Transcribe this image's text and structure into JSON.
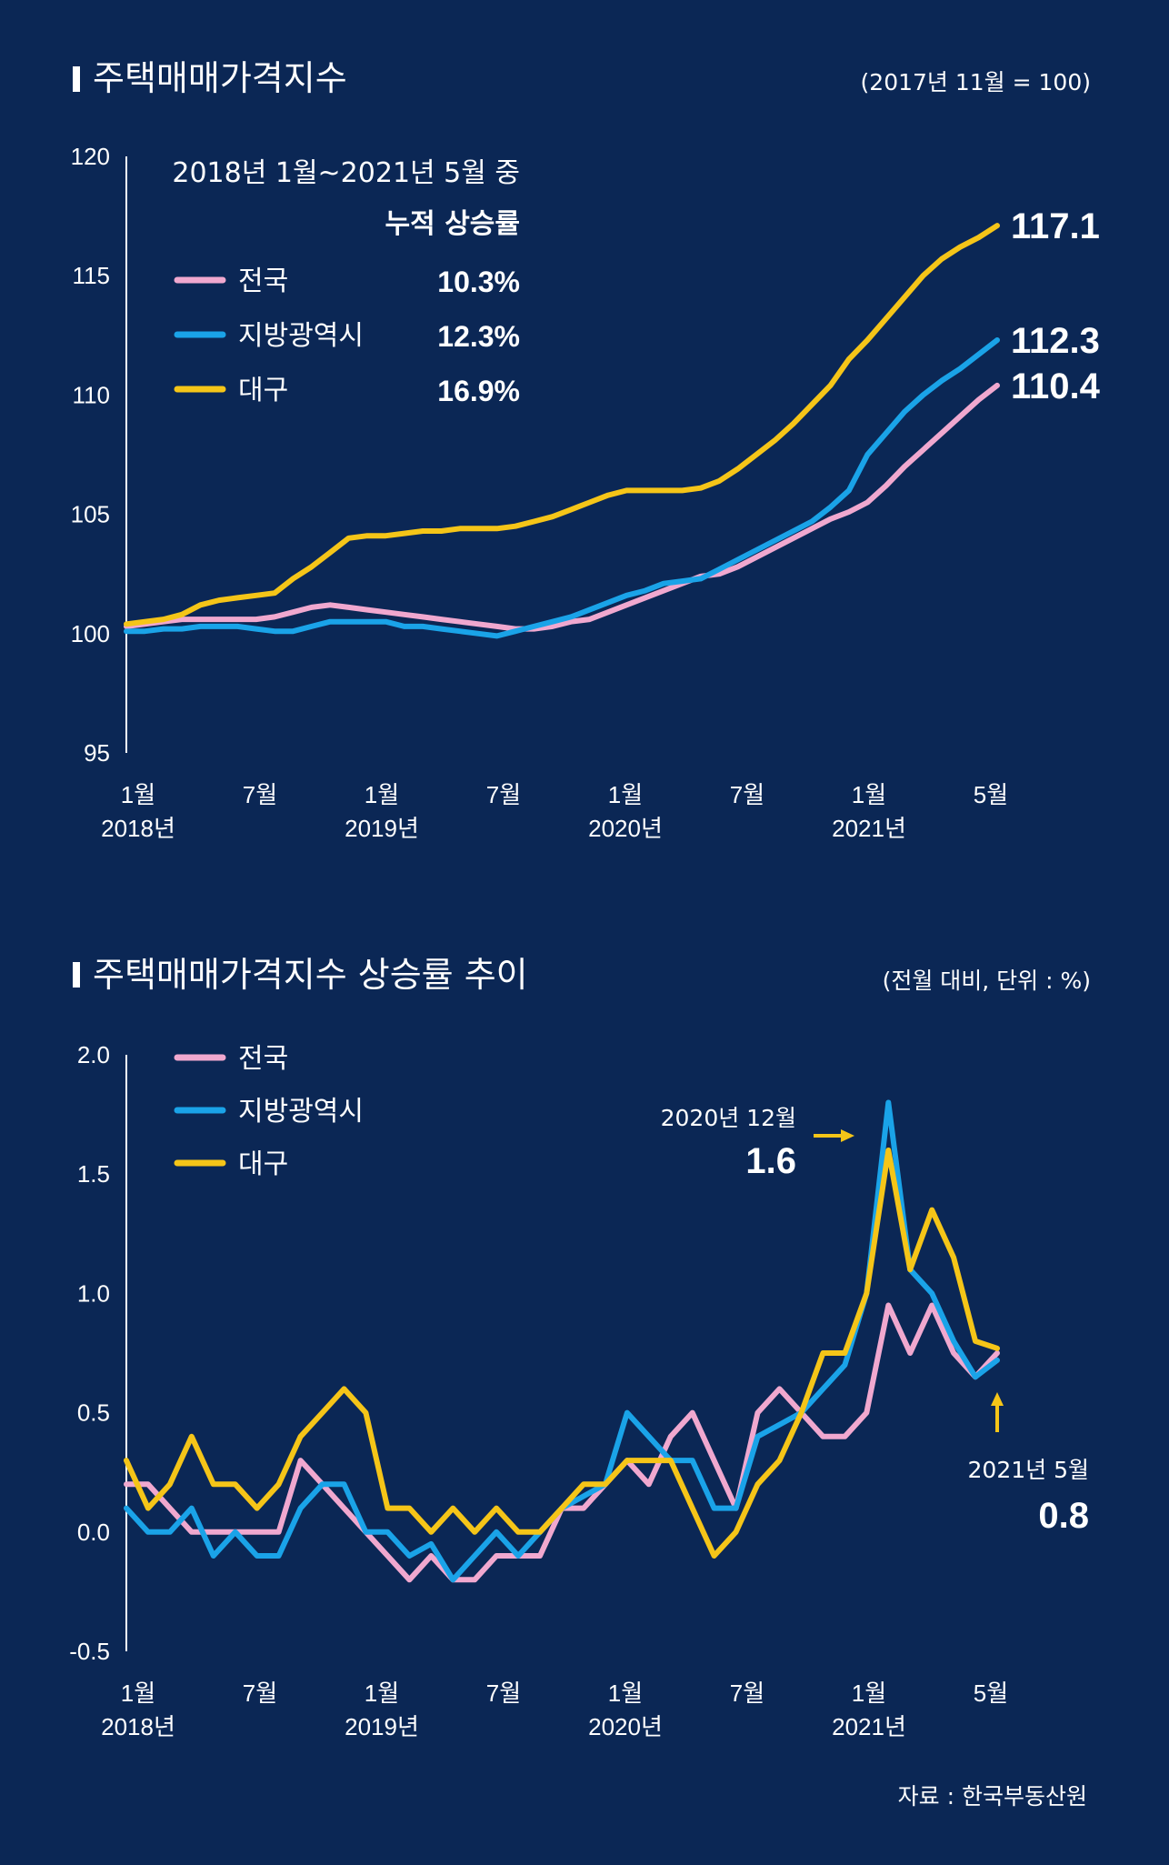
{
  "chart_data": [
    {
      "type": "line",
      "title": "주택매매가격지수",
      "subtitle": "(2017년 11월 = 100)",
      "xlabel": "",
      "ylabel": "",
      "ylim": [
        95,
        120
      ],
      "yticks": [
        "120",
        "115",
        "110",
        "105",
        "100",
        "95"
      ],
      "x_tick_labels": [
        {
          "month": "1월",
          "year": "2018년"
        },
        {
          "month": "7월",
          "year": ""
        },
        {
          "month": "1월",
          "year": "2019년"
        },
        {
          "month": "7월",
          "year": ""
        },
        {
          "month": "1월",
          "year": "2020년"
        },
        {
          "month": "7월",
          "year": ""
        },
        {
          "month": "1월",
          "year": "2021년"
        },
        {
          "month": "5월",
          "year": ""
        }
      ],
      "legend_header": {
        "period": "2018년 1월~2021년 5월 중",
        "label": "누적 상승률"
      },
      "series": [
        {
          "name": "전국",
          "color": "#f0a8cf",
          "cumulative": "10.3%",
          "end_label": "110.4",
          "values": [
            100.3,
            100.4,
            100.5,
            100.6,
            100.6,
            100.6,
            100.6,
            100.6,
            100.7,
            100.9,
            101.1,
            101.2,
            101.1,
            101.0,
            100.9,
            100.8,
            100.7,
            100.6,
            100.5,
            100.4,
            100.3,
            100.2,
            100.2,
            100.3,
            100.5,
            100.6,
            100.9,
            101.2,
            101.5,
            101.8,
            102.1,
            102.4,
            102.5,
            102.8,
            103.2,
            103.6,
            104.0,
            104.4,
            104.8,
            105.1,
            105.5,
            106.2,
            107.0,
            107.7,
            108.4,
            109.1,
            109.8,
            110.4
          ]
        },
        {
          "name": "지방광역시",
          "color": "#1aa3e8",
          "cumulative": "12.3%",
          "end_label": "112.3",
          "values": [
            100.1,
            100.1,
            100.2,
            100.2,
            100.3,
            100.3,
            100.3,
            100.2,
            100.1,
            100.1,
            100.3,
            100.5,
            100.5,
            100.5,
            100.5,
            100.3,
            100.3,
            100.2,
            100.1,
            100.0,
            99.9,
            100.1,
            100.3,
            100.5,
            100.7,
            101.0,
            101.3,
            101.6,
            101.8,
            102.1,
            102.2,
            102.3,
            102.7,
            103.1,
            103.5,
            103.9,
            104.3,
            104.7,
            105.3,
            106.0,
            107.5,
            108.4,
            109.3,
            110.0,
            110.6,
            111.1,
            111.7,
            112.3
          ]
        },
        {
          "name": "대구",
          "color": "#f5c518",
          "cumulative": "16.9%",
          "end_label": "117.1",
          "values": [
            100.4,
            100.5,
            100.6,
            100.8,
            101.2,
            101.4,
            101.5,
            101.6,
            101.7,
            102.3,
            102.8,
            103.4,
            104.0,
            104.1,
            104.1,
            104.2,
            104.3,
            104.3,
            104.4,
            104.4,
            104.4,
            104.5,
            104.7,
            104.9,
            105.2,
            105.5,
            105.8,
            106.0,
            106.0,
            106.0,
            106.0,
            106.1,
            106.4,
            106.9,
            107.5,
            108.1,
            108.8,
            109.6,
            110.4,
            111.5,
            112.3,
            113.2,
            114.1,
            115.0,
            115.7,
            116.2,
            116.6,
            117.1
          ]
        }
      ]
    },
    {
      "type": "line",
      "title": "주택매매가격지수 상승률 추이",
      "subtitle": "(전월 대비, 단위 : %)",
      "xlabel": "",
      "ylabel": "",
      "ylim": [
        -0.5,
        2.0
      ],
      "yticks": [
        "2.0",
        "1.5",
        "1.0",
        "0.5",
        "0.0",
        "-0.5"
      ],
      "x_tick_labels": [
        {
          "month": "1월",
          "year": "2018년"
        },
        {
          "month": "7월",
          "year": ""
        },
        {
          "month": "1월",
          "year": "2019년"
        },
        {
          "month": "7월",
          "year": ""
        },
        {
          "month": "1월",
          "year": "2020년"
        },
        {
          "month": "7월",
          "year": ""
        },
        {
          "month": "1월",
          "year": "2021년"
        },
        {
          "month": "5월",
          "year": ""
        }
      ],
      "annotations": [
        {
          "label": "2020년 12월",
          "value": "1.6"
        },
        {
          "label": "2021년 5월",
          "value": "0.8"
        }
      ],
      "series": [
        {
          "name": "전국",
          "color": "#f0a8cf",
          "values": [
            0.2,
            0.2,
            0.1,
            0.0,
            0.0,
            0.0,
            0.0,
            0.0,
            0.3,
            0.2,
            0.1,
            0.0,
            -0.1,
            -0.2,
            -0.1,
            -0.2,
            -0.2,
            -0.1,
            -0.1,
            -0.1,
            0.1,
            0.1,
            0.2,
            0.3,
            0.2,
            0.4,
            0.5,
            0.3,
            0.1,
            0.5,
            0.6,
            0.5,
            0.4,
            0.4,
            0.5,
            0.95,
            0.75,
            0.95,
            0.75,
            0.65,
            0.75
          ]
        },
        {
          "name": "지방광역시",
          "color": "#1aa3e8",
          "values": [
            0.1,
            0.0,
            0.0,
            0.1,
            -0.1,
            0.0,
            -0.1,
            -0.1,
            0.1,
            0.2,
            0.2,
            0.0,
            0.0,
            -0.1,
            -0.05,
            -0.2,
            -0.1,
            0.0,
            -0.1,
            0.0,
            0.1,
            0.15,
            0.2,
            0.5,
            0.4,
            0.3,
            0.3,
            0.1,
            0.1,
            0.4,
            0.45,
            0.5,
            0.6,
            0.7,
            1.0,
            1.8,
            1.1,
            1.0,
            0.8,
            0.65,
            0.72
          ]
        },
        {
          "name": "대구",
          "color": "#f5c518",
          "values": [
            0.3,
            0.1,
            0.2,
            0.4,
            0.2,
            0.2,
            0.1,
            0.2,
            0.4,
            0.5,
            0.6,
            0.5,
            0.1,
            0.1,
            0.0,
            0.1,
            0.0,
            0.1,
            0.0,
            0.0,
            0.1,
            0.2,
            0.2,
            0.3,
            0.3,
            0.3,
            0.1,
            -0.1,
            0.0,
            0.2,
            0.3,
            0.5,
            0.75,
            0.75,
            1.0,
            1.6,
            1.1,
            1.35,
            1.15,
            0.8,
            0.77
          ]
        }
      ]
    }
  ],
  "source": "자료 : 한국부동산원"
}
